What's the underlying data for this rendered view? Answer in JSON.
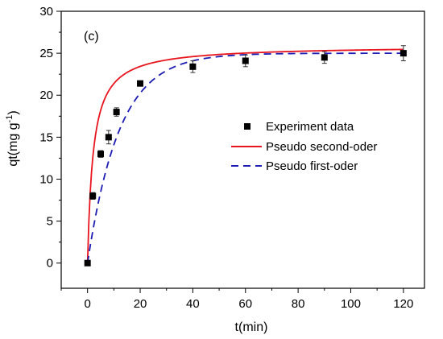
{
  "chart_data": {
    "type": "scatter",
    "panel_label": "(c)",
    "xlabel": "t(min)",
    "ylabel_main": "qt(mg g",
    "ylabel_sup": "-1",
    "ylabel_close": ")",
    "xlim": [
      -10,
      128
    ],
    "ylim": [
      -3,
      30
    ],
    "xticks": [
      0,
      20,
      40,
      60,
      80,
      100,
      120
    ],
    "yticks": [
      0,
      5,
      10,
      15,
      20,
      25,
      30
    ],
    "legend_position": "center-right",
    "series": [
      {
        "name": "Experiment data",
        "kind": "points",
        "color": "#000000",
        "x": [
          0,
          2,
          5,
          8,
          11,
          20,
          40,
          60,
          90,
          120
        ],
        "y": [
          0,
          8,
          13,
          15,
          18,
          21.4,
          23.4,
          24.1,
          24.5,
          25
        ],
        "err": [
          0,
          0.4,
          0.4,
          0.8,
          0.5,
          0.3,
          0.7,
          0.7,
          0.7,
          0.9
        ]
      },
      {
        "name": "Pseudo second-oder",
        "kind": "line",
        "color": "#e8141e",
        "dash": "solid",
        "model": "second-order",
        "qe": 25.9,
        "k": 0.0183
      },
      {
        "name": "Pseudo first-oder",
        "kind": "line",
        "color": "#1c1cb4",
        "dash": "dashed",
        "model": "first-order",
        "qe": 25,
        "k": 0.083
      }
    ]
  }
}
